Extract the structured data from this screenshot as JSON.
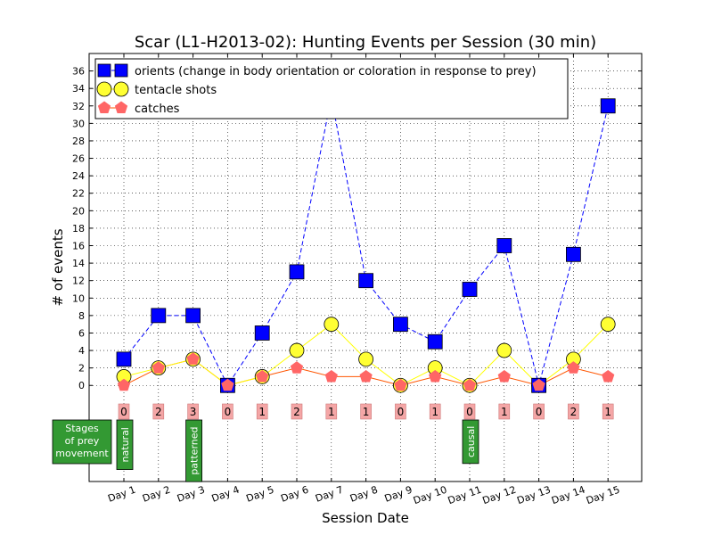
{
  "chart_data": {
    "type": "line",
    "title": "Scar (L1-H2013-02): Hunting Events per Session (30 min)",
    "xlabel": "Session Date",
    "ylabel": "# of events",
    "categories": [
      "Day 1",
      "Day 2",
      "Day 3",
      "Day 4",
      "Day 5",
      "Day 6",
      "Day 7",
      "Day 8",
      "Day 9",
      "Day 10",
      "Day 11",
      "Day 12",
      "Day 13",
      "Day 14",
      "Day 15"
    ],
    "yticks": [
      0,
      2,
      4,
      6,
      8,
      10,
      12,
      14,
      16,
      18,
      20,
      22,
      24,
      26,
      28,
      30,
      32,
      34,
      36
    ],
    "ylim": [
      -11,
      38
    ],
    "grid": true,
    "legend_position": "top-left",
    "series": [
      {
        "name": "orients (change in body orientation or coloration in response to prey)",
        "marker": "square",
        "color": "#0000ff",
        "line": "dashed",
        "values": [
          3,
          8,
          8,
          0,
          6,
          13,
          33,
          12,
          7,
          5,
          11,
          16,
          0,
          15,
          32
        ]
      },
      {
        "name": "tentacle shots",
        "marker": "circle",
        "color": "#ffff33",
        "line": "solid",
        "values": [
          1,
          2,
          3,
          0,
          1,
          4,
          7,
          3,
          0,
          2,
          0,
          4,
          0,
          3,
          7
        ]
      },
      {
        "name": "catches",
        "marker": "pentagon",
        "color": "#ff6666",
        "line": "solid",
        "values": [
          0,
          2,
          3,
          0,
          1,
          2,
          1,
          1,
          0,
          1,
          0,
          1,
          0,
          2,
          1
        ]
      }
    ],
    "catch_labels": [
      "0",
      "2",
      "3",
      "0",
      "1",
      "2",
      "1",
      "1",
      "0",
      "1",
      "0",
      "1",
      "0",
      "2",
      "1"
    ],
    "stages_title": "Stages\nof prey\nmovement",
    "stages": [
      {
        "day_index": 0,
        "label": "natural"
      },
      {
        "day_index": 2,
        "label": "patterned"
      },
      {
        "day_index": 10,
        "label": "causal"
      }
    ]
  }
}
